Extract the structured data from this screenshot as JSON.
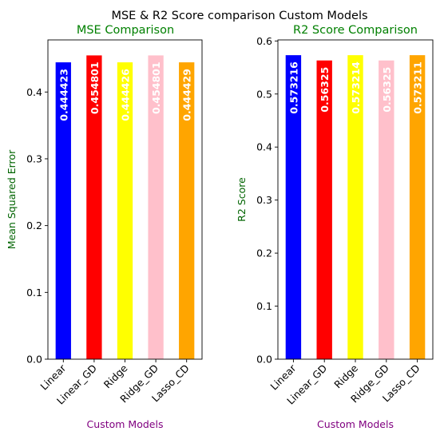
{
  "figure_title": "MSE & R2 Score comparison Custom Models",
  "chart_data": [
    {
      "type": "bar",
      "title": "MSE Comparison",
      "title_color": "#008000",
      "xlabel": "Custom Models",
      "xlabel_color": "#800080",
      "ylabel": "Mean Squared Error",
      "ylabel_color": "#006400",
      "categories": [
        "Linear",
        "Linear_GD",
        "Ridge",
        "Ridge_GD",
        "Lasso_CD"
      ],
      "values": [
        0.444423,
        0.454801,
        0.444426,
        0.454801,
        0.444429
      ],
      "value_labels": [
        "0.444423",
        "0.454801",
        "0.444426",
        "0.454801",
        "0.444429"
      ],
      "bar_colors": [
        "#0000ff",
        "#ff0000",
        "#ffff00",
        "#ffc0cb",
        "#ffa500"
      ],
      "ylim": [
        0,
        0.478
      ],
      "yticks": [
        0.0,
        0.1,
        0.2,
        0.3,
        0.4
      ],
      "ytick_labels": [
        "0.0",
        "0.1",
        "0.2",
        "0.3",
        "0.4"
      ],
      "grid": false
    },
    {
      "type": "bar",
      "title": "R2 Score Comparison",
      "title_color": "#008000",
      "xlabel": "Custom Models",
      "xlabel_color": "#800080",
      "ylabel": "R2 Score",
      "ylabel_color": "#006400",
      "categories": [
        "Linear",
        "Linear_GD",
        "Ridge",
        "Ridge_GD",
        "Lasso_CD"
      ],
      "values": [
        0.573216,
        0.56325,
        0.573214,
        0.56325,
        0.573211
      ],
      "value_labels": [
        "0.573216",
        "0.56325",
        "0.573214",
        "0.56325",
        "0.573211"
      ],
      "bar_colors": [
        "#0000ff",
        "#ff0000",
        "#ffff00",
        "#ffc0cb",
        "#ffa500"
      ],
      "ylim": [
        0,
        0.602
      ],
      "yticks": [
        0.0,
        0.1,
        0.2,
        0.3,
        0.4,
        0.5,
        0.6
      ],
      "ytick_labels": [
        "0.0",
        "0.1",
        "0.2",
        "0.3",
        "0.4",
        "0.5",
        "0.6"
      ],
      "grid": false
    }
  ]
}
